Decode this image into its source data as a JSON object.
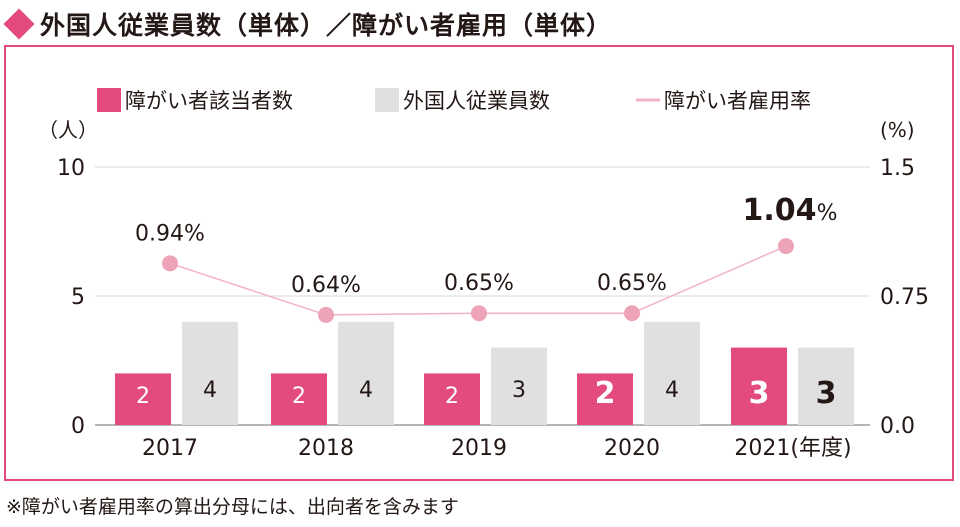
{
  "title": "外国人従業員数（単体）／障がい者雇用（単体）",
  "note": "※障がい者雇用率の算出分母には、出向者を含みます",
  "colors": {
    "accent": "#e34b7e",
    "gray": "#e0e0e0",
    "line": "#f2b3c5",
    "dot": "#eda4b9"
  },
  "chart_data": {
    "type": "bar",
    "categories": [
      "2017",
      "2018",
      "2019",
      "2020",
      "2021"
    ],
    "category_suffix": "(年度)",
    "series": [
      {
        "name": "障がい者該当者数",
        "values": [
          2,
          2,
          2,
          2,
          3
        ]
      },
      {
        "name": "外国人従業員数",
        "values": [
          4,
          4,
          3,
          4,
          3
        ]
      }
    ],
    "line_series": {
      "name": "障がい者雇用率",
      "values": [
        0.94,
        0.64,
        0.65,
        0.65,
        1.04
      ],
      "labels": [
        "0.94%",
        "0.64%",
        "0.65%",
        "0.65%",
        "1.04"
      ],
      "highlight_unit": "%"
    },
    "y_left": {
      "unit": "（人）",
      "ticks": [
        "10",
        "5",
        "0"
      ],
      "range": [
        0,
        10
      ]
    },
    "y_right": {
      "unit": "(%)",
      "ticks": [
        "1.5",
        "0.75",
        "0.0"
      ],
      "range": [
        0,
        1.5
      ]
    },
    "legend_position": "top"
  }
}
